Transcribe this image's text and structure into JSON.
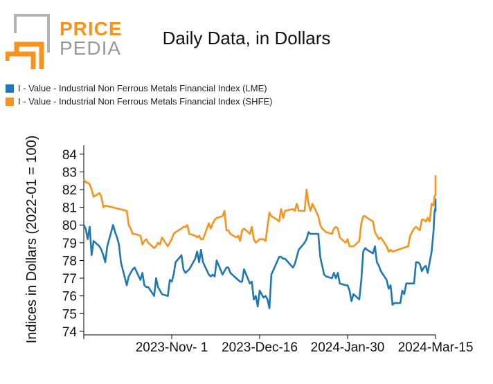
{
  "logo": {
    "word1": "PRICE",
    "word2": "PEDIA"
  },
  "chart_data": {
    "type": "line",
    "title": "Daily Data, in Dollars",
    "ylabel": "Indices in Dollars (2022-01 = 100)",
    "xlabel": "",
    "ylim": [
      73.8,
      84.5
    ],
    "yticks": [
      74,
      75,
      76,
      77,
      78,
      79,
      80,
      81,
      82,
      83,
      84
    ],
    "xlim": [
      "2023-09-17",
      "2024-03-15"
    ],
    "xticks": [
      {
        "label": "2023-Nov- 1",
        "date": "2023-11-01"
      },
      {
        "label": "2023-Dec-16",
        "date": "2023-12-16"
      },
      {
        "label": "2024-Jan-30",
        "date": "2024-01-30"
      },
      {
        "label": "2024-Mar-15",
        "date": "2024-03-15"
      }
    ],
    "legend_position": "top-left",
    "series": [
      {
        "name": "I - Value - Industrial Non Ferrous Metals Financial Index (LME)",
        "color": "#1f77b4",
        "points": [
          [
            "2023-09-17",
            80.0
          ],
          [
            "2023-09-18",
            79.8
          ],
          [
            "2023-09-19",
            79.2
          ],
          [
            "2023-09-20",
            79.9
          ],
          [
            "2023-09-21",
            78.3
          ],
          [
            "2023-09-22",
            79.1
          ],
          [
            "2023-09-25",
            78.8
          ],
          [
            "2023-09-26",
            78.6
          ],
          [
            "2023-09-27",
            78.3
          ],
          [
            "2023-09-28",
            77.9
          ],
          [
            "2023-09-29",
            78.8
          ],
          [
            "2023-10-02",
            80.0
          ],
          [
            "2023-10-03",
            79.6
          ],
          [
            "2023-10-04",
            79.3
          ],
          [
            "2023-10-05",
            78.9
          ],
          [
            "2023-10-06",
            77.9
          ],
          [
            "2023-10-09",
            76.6
          ],
          [
            "2023-10-10",
            77.1
          ],
          [
            "2023-10-11",
            77.3
          ],
          [
            "2023-10-12",
            77.5
          ],
          [
            "2023-10-13",
            77.6
          ],
          [
            "2023-10-16",
            76.9
          ],
          [
            "2023-10-17",
            77.3
          ],
          [
            "2023-10-18",
            76.6
          ],
          [
            "2023-10-19",
            76.5
          ],
          [
            "2023-10-20",
            76.5
          ],
          [
            "2023-10-23",
            76.0
          ],
          [
            "2023-10-24",
            77.0
          ],
          [
            "2023-10-25",
            76.5
          ],
          [
            "2023-10-26",
            76.3
          ],
          [
            "2023-10-27",
            76.1
          ],
          [
            "2023-10-30",
            76.0
          ],
          [
            "2023-10-31",
            76.9
          ],
          [
            "2023-11-01",
            76.8
          ],
          [
            "2023-11-02",
            77.2
          ],
          [
            "2023-11-03",
            77.9
          ],
          [
            "2023-11-06",
            78.3
          ],
          [
            "2023-11-07",
            77.5
          ],
          [
            "2023-11-08",
            77.3
          ],
          [
            "2023-11-09",
            77.4
          ],
          [
            "2023-11-10",
            77.5
          ],
          [
            "2023-11-13",
            78.1
          ],
          [
            "2023-11-14",
            78.5
          ],
          [
            "2023-11-15",
            77.9
          ],
          [
            "2023-11-16",
            78.6
          ],
          [
            "2023-11-17",
            77.9
          ],
          [
            "2023-11-20",
            77.2
          ],
          [
            "2023-11-21",
            77.1
          ],
          [
            "2023-11-22",
            77.2
          ],
          [
            "2023-11-23",
            77.1
          ],
          [
            "2023-11-24",
            78.0
          ],
          [
            "2023-11-27",
            77.2
          ],
          [
            "2023-11-28",
            77.4
          ],
          [
            "2023-11-29",
            77.6
          ],
          [
            "2023-11-30",
            77.6
          ],
          [
            "2023-12-01",
            77.3
          ],
          [
            "2023-12-04",
            77.0
          ],
          [
            "2023-12-05",
            76.9
          ],
          [
            "2023-12-06",
            76.8
          ],
          [
            "2023-12-07",
            76.8
          ],
          [
            "2023-12-08",
            77.5
          ],
          [
            "2023-12-11",
            76.7
          ],
          [
            "2023-12-12",
            76.8
          ],
          [
            "2023-12-13",
            75.8
          ],
          [
            "2023-12-14",
            76.0
          ],
          [
            "2023-12-15",
            75.4
          ],
          [
            "2023-12-16",
            76.3
          ],
          [
            "2023-12-18",
            75.9
          ],
          [
            "2023-12-19",
            76.0
          ],
          [
            "2023-12-20",
            75.8
          ],
          [
            "2023-12-21",
            75.3
          ],
          [
            "2023-12-22",
            77.2
          ],
          [
            "2023-12-26",
            78.2
          ],
          [
            "2023-12-27",
            78.2
          ],
          [
            "2023-12-28",
            78.1
          ],
          [
            "2023-12-29",
            78.1
          ],
          [
            "2024-01-02",
            77.6
          ],
          [
            "2024-01-03",
            77.8
          ],
          [
            "2024-01-04",
            78.2
          ],
          [
            "2024-01-05",
            78.6
          ],
          [
            "2024-01-08",
            79.0
          ],
          [
            "2024-01-09",
            79.2
          ],
          [
            "2024-01-10",
            79.6
          ],
          [
            "2024-01-11",
            79.5
          ],
          [
            "2024-01-12",
            79.5
          ],
          [
            "2024-01-15",
            79.5
          ],
          [
            "2024-01-16",
            78.2
          ],
          [
            "2024-01-17",
            77.7
          ],
          [
            "2024-01-18",
            77.2
          ],
          [
            "2024-01-19",
            77.1
          ],
          [
            "2024-01-22",
            77.0
          ],
          [
            "2024-01-23",
            77.3
          ],
          [
            "2024-01-24",
            77.0
          ],
          [
            "2024-01-25",
            77.3
          ],
          [
            "2024-01-26",
            76.7
          ],
          [
            "2024-01-29",
            76.6
          ],
          [
            "2024-01-30",
            76.6
          ],
          [
            "2024-01-31",
            76.3
          ],
          [
            "2024-02-01",
            75.7
          ],
          [
            "2024-02-02",
            76.1
          ],
          [
            "2024-02-05",
            75.8
          ],
          [
            "2024-02-06",
            76.9
          ],
          [
            "2024-02-07",
            78.5
          ],
          [
            "2024-02-08",
            78.7
          ],
          [
            "2024-02-09",
            78.6
          ],
          [
            "2024-02-12",
            78.4
          ],
          [
            "2024-02-13",
            78.8
          ],
          [
            "2024-02-14",
            77.9
          ],
          [
            "2024-02-15",
            77.7
          ],
          [
            "2024-02-16",
            77.4
          ],
          [
            "2024-02-19",
            76.9
          ],
          [
            "2024-02-20",
            76.4
          ],
          [
            "2024-02-21",
            76.6
          ],
          [
            "2024-02-22",
            75.5
          ],
          [
            "2024-02-23",
            75.6
          ],
          [
            "2024-02-26",
            75.6
          ],
          [
            "2024-02-27",
            76.3
          ],
          [
            "2024-02-28",
            76.1
          ],
          [
            "2024-02-29",
            76.7
          ],
          [
            "2024-03-01",
            76.7
          ],
          [
            "2024-03-04",
            76.7
          ],
          [
            "2024-03-05",
            77.9
          ],
          [
            "2024-03-06",
            77.9
          ],
          [
            "2024-03-07",
            77.8
          ],
          [
            "2024-03-08",
            77.4
          ],
          [
            "2024-03-09",
            77.6
          ],
          [
            "2024-03-10",
            77.7
          ],
          [
            "2024-03-11",
            77.3
          ],
          [
            "2024-03-12",
            77.9
          ],
          [
            "2024-03-13",
            78.5
          ],
          [
            "2024-03-14",
            79.7
          ],
          [
            "2024-03-14",
            80.7
          ],
          [
            "2024-03-15",
            81.0
          ],
          [
            "2024-03-15",
            80.8
          ],
          [
            "2024-03-15",
            81.5
          ]
        ]
      },
      {
        "name": "I - Value - Industrial Non Ferrous Metals Financial Index (SHFE)",
        "color": "#f7931e",
        "points": [
          [
            "2023-09-17",
            82.6
          ],
          [
            "2023-09-18",
            82.4
          ],
          [
            "2023-09-19",
            82.4
          ],
          [
            "2023-09-20",
            82.3
          ],
          [
            "2023-09-21",
            82.0
          ],
          [
            "2023-09-22",
            81.6
          ],
          [
            "2023-09-25",
            81.8
          ],
          [
            "2023-09-26",
            81.6
          ],
          [
            "2023-09-27",
            81.0
          ],
          [
            "2023-09-28",
            81.1
          ],
          [
            "2023-10-09",
            80.8
          ],
          [
            "2023-10-10",
            80.0
          ],
          [
            "2023-10-11",
            79.8
          ],
          [
            "2023-10-12",
            79.5
          ],
          [
            "2023-10-13",
            79.5
          ],
          [
            "2023-10-16",
            79.4
          ],
          [
            "2023-10-17",
            78.9
          ],
          [
            "2023-10-18",
            79.1
          ],
          [
            "2023-10-19",
            79.2
          ],
          [
            "2023-10-20",
            79.0
          ],
          [
            "2023-10-23",
            78.7
          ],
          [
            "2023-10-24",
            78.8
          ],
          [
            "2023-10-25",
            79.0
          ],
          [
            "2023-10-26",
            78.9
          ],
          [
            "2023-10-27",
            79.3
          ],
          [
            "2023-10-30",
            78.8
          ],
          [
            "2023-10-31",
            79.0
          ],
          [
            "2023-11-01",
            79.2
          ],
          [
            "2023-11-02",
            79.5
          ],
          [
            "2023-11-03",
            79.6
          ],
          [
            "2023-11-06",
            79.8
          ],
          [
            "2023-11-07",
            79.9
          ],
          [
            "2023-11-08",
            79.9
          ],
          [
            "2023-11-09",
            80.0
          ],
          [
            "2023-11-10",
            79.5
          ],
          [
            "2023-11-13",
            79.4
          ],
          [
            "2023-11-14",
            79.3
          ],
          [
            "2023-11-15",
            79.4
          ],
          [
            "2023-11-16",
            79.2
          ],
          [
            "2023-11-17",
            79.2
          ],
          [
            "2023-11-20",
            80.1
          ],
          [
            "2023-11-21",
            79.8
          ],
          [
            "2023-11-22",
            80.1
          ],
          [
            "2023-11-23",
            80.3
          ],
          [
            "2023-11-24",
            80.4
          ],
          [
            "2023-11-27",
            80.5
          ],
          [
            "2023-11-28",
            80.8
          ],
          [
            "2023-11-29",
            79.7
          ],
          [
            "2023-11-30",
            79.7
          ],
          [
            "2023-12-01",
            79.5
          ],
          [
            "2023-12-04",
            79.3
          ],
          [
            "2023-12-05",
            79.4
          ],
          [
            "2023-12-06",
            79.1
          ],
          [
            "2023-12-07",
            79.7
          ],
          [
            "2023-12-08",
            79.8
          ],
          [
            "2023-12-11",
            79.5
          ],
          [
            "2023-12-12",
            79.9
          ],
          [
            "2023-12-13",
            79.2
          ],
          [
            "2023-12-14",
            79.0
          ],
          [
            "2023-12-15",
            79.1
          ],
          [
            "2023-12-16",
            79.2
          ],
          [
            "2023-12-18",
            79.2
          ],
          [
            "2023-12-19",
            79.1
          ],
          [
            "2023-12-20",
            79.9
          ],
          [
            "2023-12-21",
            80.7
          ],
          [
            "2023-12-22",
            80.5
          ],
          [
            "2023-12-25",
            80.3
          ],
          [
            "2023-12-26",
            80.2
          ],
          [
            "2023-12-27",
            80.9
          ],
          [
            "2023-12-28",
            80.4
          ],
          [
            "2023-12-29",
            80.8
          ],
          [
            "2024-01-02",
            80.9
          ],
          [
            "2024-01-03",
            80.8
          ],
          [
            "2024-01-04",
            81.2
          ],
          [
            "2024-01-05",
            80.8
          ],
          [
            "2024-01-08",
            80.8
          ],
          [
            "2024-01-09",
            82.0
          ],
          [
            "2024-01-10",
            81.2
          ],
          [
            "2024-01-11",
            80.8
          ],
          [
            "2024-01-12",
            81.2
          ],
          [
            "2024-01-15",
            80.5
          ],
          [
            "2024-01-16",
            80.0
          ],
          [
            "2024-01-17",
            79.8
          ],
          [
            "2024-01-18",
            79.7
          ],
          [
            "2024-01-19",
            79.6
          ],
          [
            "2024-01-22",
            79.5
          ],
          [
            "2024-01-23",
            79.8
          ],
          [
            "2024-01-24",
            79.9
          ],
          [
            "2024-01-25",
            79.8
          ],
          [
            "2024-01-26",
            79.3
          ],
          [
            "2024-01-29",
            79.0
          ],
          [
            "2024-01-30",
            79.2
          ],
          [
            "2024-01-31",
            78.8
          ],
          [
            "2024-02-01",
            78.8
          ],
          [
            "2024-02-02",
            78.8
          ],
          [
            "2024-02-05",
            79.1
          ],
          [
            "2024-02-06",
            80.1
          ],
          [
            "2024-02-07",
            80.5
          ],
          [
            "2024-02-08",
            80.5
          ],
          [
            "2024-02-09",
            80.4
          ],
          [
            "2024-02-12",
            80.2
          ],
          [
            "2024-02-13",
            79.6
          ],
          [
            "2024-02-14",
            79.4
          ],
          [
            "2024-02-15",
            79.2
          ],
          [
            "2024-02-16",
            79.3
          ],
          [
            "2024-02-19",
            78.8
          ],
          [
            "2024-02-20",
            78.5
          ],
          [
            "2024-02-21",
            78.6
          ],
          [
            "2024-02-22",
            78.5
          ],
          [
            "2024-03-01",
            78.8
          ],
          [
            "2024-03-02",
            79.4
          ],
          [
            "2024-03-04",
            79.8
          ],
          [
            "2024-03-05",
            79.9
          ],
          [
            "2024-03-06",
            79.8
          ],
          [
            "2024-03-07",
            79.7
          ],
          [
            "2024-03-08",
            80.3
          ],
          [
            "2024-03-09",
            80.3
          ],
          [
            "2024-03-10",
            80.2
          ],
          [
            "2024-03-11",
            80.4
          ],
          [
            "2024-03-12",
            80.2
          ],
          [
            "2024-03-13",
            81.2
          ],
          [
            "2024-03-14",
            81.1
          ],
          [
            "2024-03-14",
            81.6
          ],
          [
            "2024-03-15",
            81.7
          ],
          [
            "2024-03-15",
            82.8
          ]
        ]
      }
    ]
  }
}
